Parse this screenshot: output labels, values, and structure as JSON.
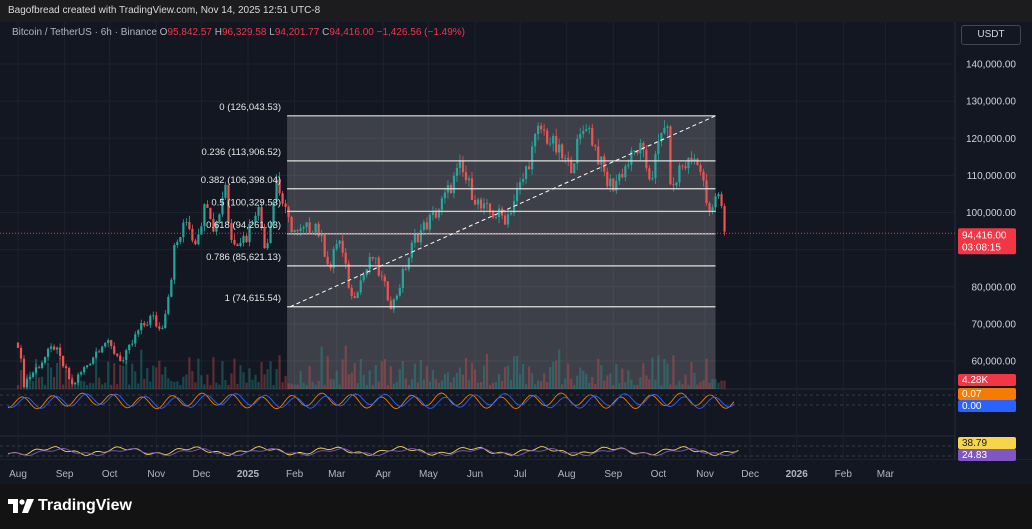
{
  "header": {
    "credit": "Bagofbread created with TradingView.com, Nov 14, 2025 12:51 UTC-8"
  },
  "legend": {
    "symbol": "Bitcoin / TetherUS · 6h · Binance",
    "o_label": "O",
    "o": "95,842.57",
    "h_label": "H",
    "h": "96,329.58",
    "l_label": "L",
    "l": "94,201.77",
    "c_label": "C",
    "c": "94,416.00",
    "change": "−1,426.56 (−1.49%)"
  },
  "currency_button": "USDT",
  "colors": {
    "up": "#26a69a",
    "down": "#ef5350",
    "accent_red": "#f23645",
    "orange": "#f57c00",
    "blue": "#2962ff",
    "yellow": "#f7d54b",
    "purple": "#7e57c2"
  },
  "chart_data": {
    "type": "line",
    "title": "Bitcoin / TetherUS · 6h · Binance",
    "x_tick_labels": [
      "Aug",
      "Sep",
      "Oct",
      "Nov",
      "Dec",
      "2025",
      "Feb",
      "Mar",
      "Apr",
      "May",
      "Jun",
      "Jul",
      "Aug",
      "Sep",
      "Oct",
      "Nov",
      "Dec",
      "2026",
      "Feb",
      "Mar"
    ],
    "y_tick_labels": [
      "140,000.00",
      "130,000.00",
      "120,000.00",
      "110,000.00",
      "100,000.00",
      "90,000.00",
      "80,000.00",
      "70,000.00",
      "60,000.00"
    ],
    "y_ticks": [
      140000,
      130000,
      120000,
      110000,
      100000,
      90000,
      80000,
      70000,
      60000
    ],
    "ylim": [
      54000,
      147000
    ],
    "series": [
      {
        "values": [
          [
            "2024-08-01",
            65000
          ],
          [
            "2024-08-05",
            54000
          ],
          [
            "2024-08-15",
            59000
          ],
          [
            "2024-08-25",
            64000
          ],
          [
            "2024-09-06",
            53500
          ],
          [
            "2024-09-15",
            58500
          ],
          [
            "2024-09-27",
            65500
          ],
          [
            "2024-10-10",
            60000
          ],
          [
            "2024-10-20",
            68000
          ],
          [
            "2024-10-29",
            72000
          ],
          [
            "2024-11-04",
            68000
          ],
          [
            "2024-11-10",
            80000
          ],
          [
            "2024-11-13",
            90000
          ],
          [
            "2024-11-22",
            98500
          ],
          [
            "2024-11-26",
            91500
          ],
          [
            "2024-12-05",
            103500
          ],
          [
            "2024-12-10",
            95000
          ],
          [
            "2024-12-17",
            108300
          ],
          [
            "2024-12-20",
            92500
          ],
          [
            "2024-12-31",
            93500
          ],
          [
            "2025-01-07",
            102500
          ],
          [
            "2025-01-13",
            90000
          ],
          [
            "2025-01-20",
            109000
          ],
          [
            "2025-01-27",
            98000
          ],
          [
            "2025-02-03",
            94000
          ],
          [
            "2025-02-15",
            97000
          ],
          [
            "2025-02-25",
            85000
          ],
          [
            "2025-03-02",
            94000
          ],
          [
            "2025-03-11",
            77000
          ],
          [
            "2025-03-25",
            88000
          ],
          [
            "2025-04-07",
            74600
          ],
          [
            "2025-04-22",
            93000
          ],
          [
            "2025-05-08",
            101000
          ],
          [
            "2025-05-22",
            111900
          ],
          [
            "2025-06-05",
            101000
          ],
          [
            "2025-06-22",
            98500
          ],
          [
            "2025-07-03",
            109000
          ],
          [
            "2025-07-14",
            123000
          ],
          [
            "2025-07-25",
            117000
          ],
          [
            "2025-08-03",
            112000
          ],
          [
            "2025-08-14",
            124500
          ],
          [
            "2025-08-28",
            108000
          ],
          [
            "2025-09-01",
            107500
          ],
          [
            "2025-09-18",
            117800
          ],
          [
            "2025-09-26",
            109000
          ],
          [
            "2025-10-06",
            126043
          ],
          [
            "2025-10-10",
            104000
          ],
          [
            "2025-10-15",
            112000
          ],
          [
            "2025-10-27",
            115000
          ],
          [
            "2025-11-04",
            99000
          ],
          [
            "2025-11-11",
            106500
          ],
          [
            "2025-11-14",
            94416
          ]
        ]
      }
    ],
    "fib_levels": [
      {
        "label": "0 (126,043.53)",
        "value": 126043.53
      },
      {
        "label": "0.236 (113,906.52)",
        "value": 113906.52
      },
      {
        "label": "0.382 (106,398.04)",
        "value": 106398.04
      },
      {
        "label": "0.5 (100,329.53)",
        "value": 100329.53
      },
      {
        "label": "0.618 (94,261.03)",
        "value": 94261.03
      },
      {
        "label": "0.786 (85,621.13)",
        "value": 85621.13
      },
      {
        "label": "1 (74,615.54)",
        "value": 74615.54
      }
    ],
    "fib_range": {
      "start": "2025-01-27",
      "end": "2025-11-08"
    },
    "trend_line": [
      [
        "2025-01-29",
        74615.54
      ],
      [
        "2025-11-08",
        126043.53
      ]
    ],
    "last_price": {
      "label": "94,416.00",
      "value": 94416.0,
      "countdown": "03:08:15"
    },
    "indicator_labels": {
      "volume": "4.28K",
      "osc1_a": "0.07",
      "osc1_b": "0.00",
      "osc2_a": "38.79",
      "osc2_b": "24.83"
    },
    "grid": true
  },
  "brand": {
    "name": "TradingView"
  }
}
